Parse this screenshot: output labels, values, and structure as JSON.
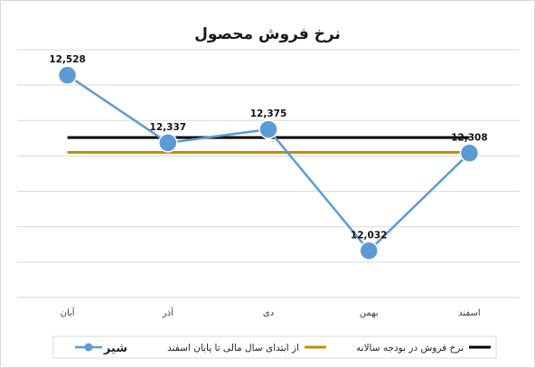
{
  "chart_data": {
    "type": "line",
    "title": "نرخ فروش محصول",
    "categories": [
      "آبان",
      "آذر",
      "دی",
      "بهمن",
      "اسفند"
    ],
    "series": [
      {
        "name": "شیر",
        "values": [
          12528,
          12337,
          12375,
          12032,
          12308
        ],
        "labels": [
          "12,528",
          "12,337",
          "12,375",
          "12,032",
          "12,308"
        ],
        "color": "#5b9bd5",
        "marker": "circle"
      },
      {
        "name": "نرخ فروش در بودجه سالانه",
        "values": [
          12352,
          12352,
          12352,
          12352,
          12352
        ],
        "color": "#000000",
        "marker": "none"
      },
      {
        "name": "از ابتدای سال مالی تا پایان اسفند",
        "values": [
          12310,
          12310,
          12310,
          12310,
          12310
        ],
        "color": "#bf9000",
        "marker": "none"
      }
    ],
    "ylim": [
      11900,
      12600
    ],
    "grid": true,
    "legend": "bottom"
  }
}
